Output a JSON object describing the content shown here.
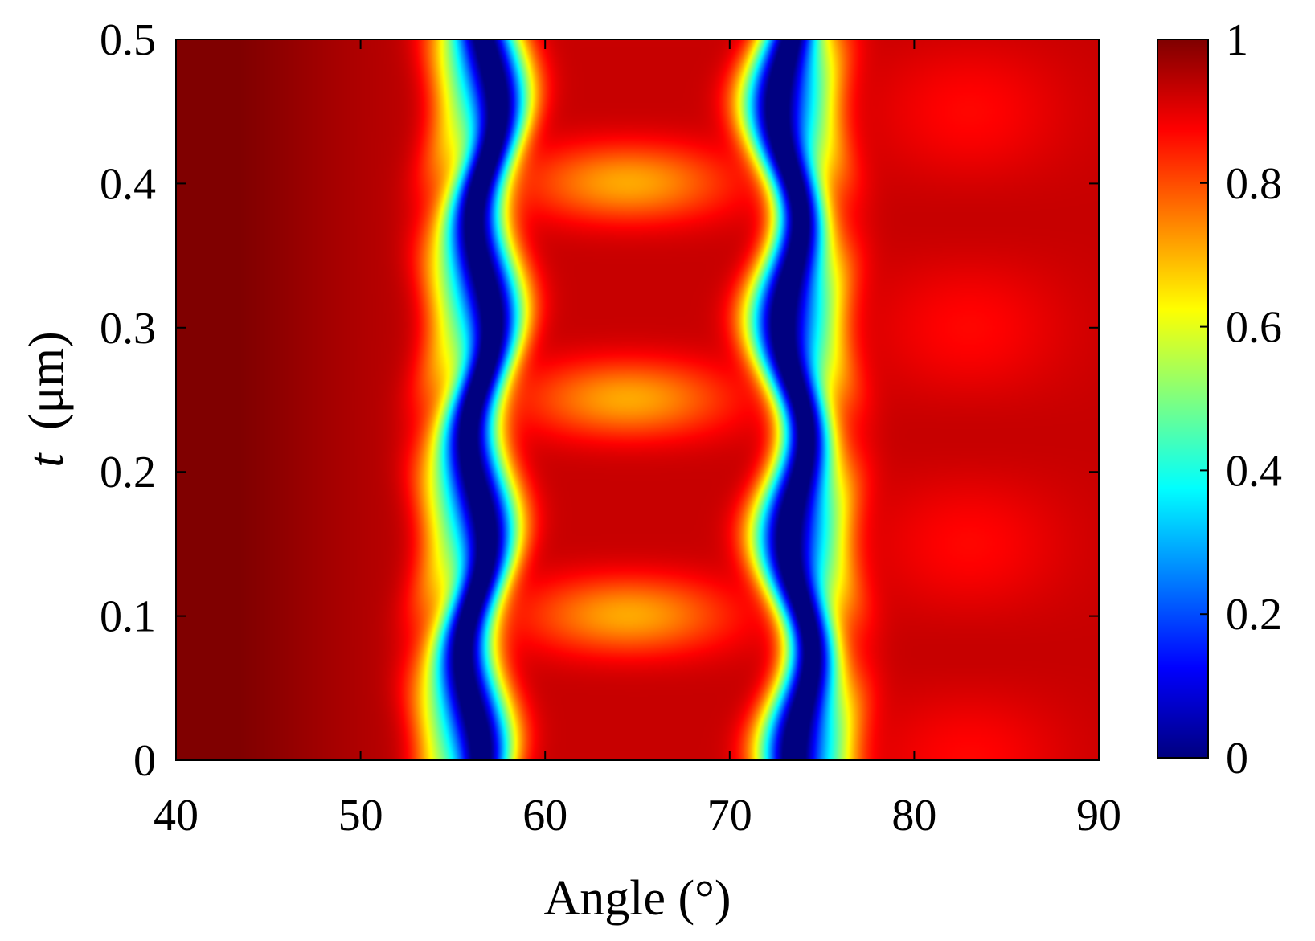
{
  "chart_data": {
    "type": "heatmap",
    "title": "",
    "xlabel": "Angle (°)",
    "ylabel_symbol": "t",
    "ylabel_unit": "(μm)",
    "xlim": [
      40,
      90
    ],
    "ylim": [
      0,
      0.5
    ],
    "xticks": [
      40,
      50,
      60,
      70,
      80,
      90
    ],
    "xtick_labels": [
      "40",
      "50",
      "60",
      "70",
      "80",
      "90"
    ],
    "yticks": [
      0,
      0.1,
      0.2,
      0.3,
      0.4,
      0.5
    ],
    "ytick_labels": [
      "0",
      "0.1",
      "0.2",
      "0.3",
      "0.4",
      "0.5"
    ],
    "colorbar": {
      "range": [
        0,
        1
      ],
      "ticks": [
        0,
        0.2,
        0.4,
        0.6,
        0.8,
        1
      ],
      "tick_labels": [
        "0",
        "0.2",
        "0.4",
        "0.6",
        "0.8",
        "1"
      ],
      "colormap": "jet"
    },
    "value_label": "",
    "features": {
      "band_period_t": 0.15,
      "minima": [
        {
          "angle_center": 56.0,
          "angle_slope_per_um": 2.0,
          "depth": 1.0
        },
        {
          "angle_center": 74.0,
          "angle_slope_per_um": -2.0,
          "depth": 1.0
        }
      ],
      "red_lobes_t": [
        0.05,
        0.2,
        0.35,
        0.5
      ],
      "red_lobe_angle": 64.5
    }
  }
}
